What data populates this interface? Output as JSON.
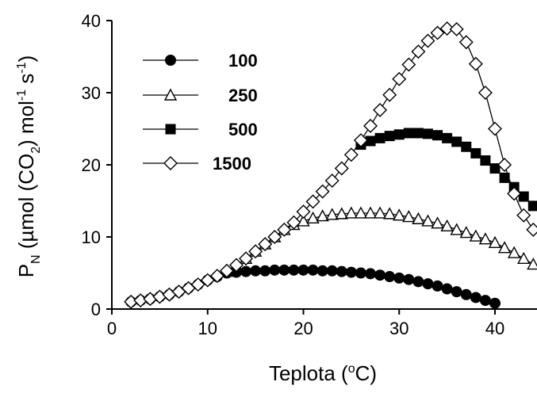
{
  "chart_data": {
    "type": "line",
    "xlabel": {
      "main": "Teplota (",
      "sup": "o",
      "tail": "C)"
    },
    "ylabel": {
      "p": "P",
      "sub_n": "N",
      "a": " (µmol (CO",
      "sub_2": "2",
      "b": ") mol",
      "sup1": "-1",
      "c": " s",
      "sup2": "-1",
      "d": ")"
    },
    "xlim": [
      0,
      44
    ],
    "ylim": [
      0,
      40
    ],
    "xticks": [
      "0",
      "10",
      "20",
      "30",
      "40"
    ],
    "yticks": [
      "0",
      "10",
      "20",
      "30",
      "40"
    ],
    "grid": false,
    "legend_position": "top-left",
    "x": [
      2,
      3,
      4,
      5,
      6,
      7,
      8,
      9,
      10,
      11,
      12,
      13,
      14,
      15,
      16,
      17,
      18,
      19,
      20,
      21,
      22,
      23,
      24,
      25,
      26,
      27,
      28,
      29,
      30,
      31,
      32,
      33,
      34,
      35,
      36,
      37,
      38,
      39,
      40,
      41,
      42,
      43,
      44
    ],
    "series": [
      {
        "name": "100",
        "marker": "filled-circle",
        "values": [
          1.0,
          1.2,
          1.4,
          1.7,
          2.0,
          2.4,
          2.9,
          3.4,
          4.0,
          4.5,
          5.0,
          5.1,
          5.2,
          5.3,
          5.3,
          5.4,
          5.4,
          5.4,
          5.4,
          5.4,
          5.3,
          5.3,
          5.2,
          5.1,
          5.0,
          4.9,
          4.7,
          4.5,
          4.3,
          4.1,
          3.8,
          3.5,
          3.2,
          2.8,
          2.4,
          2.0,
          1.6,
          1.2,
          0.8,
          null,
          null,
          null,
          null
        ]
      },
      {
        "name": "250",
        "marker": "open-triangle",
        "values": [
          null,
          null,
          null,
          null,
          null,
          null,
          null,
          null,
          null,
          null,
          5.2,
          6.0,
          7.0,
          8.0,
          9.0,
          10.0,
          11.0,
          11.7,
          12.2,
          12.6,
          12.9,
          13.1,
          13.2,
          13.3,
          13.3,
          13.3,
          13.3,
          13.2,
          13.0,
          12.8,
          12.5,
          12.2,
          11.9,
          11.5,
          11.0,
          10.6,
          10.1,
          9.7,
          9.2,
          8.5,
          7.8,
          7.0,
          6.2
        ]
      },
      {
        "name": "500",
        "marker": "filled-square",
        "values": [
          null,
          null,
          null,
          null,
          null,
          null,
          null,
          null,
          null,
          null,
          null,
          null,
          null,
          null,
          null,
          null,
          null,
          null,
          null,
          null,
          null,
          null,
          null,
          null,
          22.8,
          23.3,
          23.7,
          24.0,
          24.2,
          24.4,
          24.4,
          24.3,
          24.1,
          23.7,
          23.2,
          22.5,
          21.6,
          20.6,
          19.5,
          18.2,
          16.9,
          15.6,
          14.3
        ]
      },
      {
        "name": "1500",
        "marker": "open-diamond",
        "values": [
          1.0,
          1.2,
          1.4,
          1.7,
          2.0,
          2.4,
          2.9,
          3.4,
          4.0,
          4.6,
          5.3,
          6.1,
          7.0,
          8.0,
          9.0,
          10.0,
          11.0,
          12.0,
          13.5,
          14.9,
          16.3,
          17.8,
          19.5,
          21.4,
          23.4,
          25.4,
          27.6,
          29.7,
          31.9,
          33.9,
          35.7,
          37.2,
          38.3,
          38.9,
          38.8,
          37.0,
          34.0,
          30.0,
          25.0,
          20.0,
          16.0,
          13.0,
          11.0
        ]
      }
    ]
  }
}
